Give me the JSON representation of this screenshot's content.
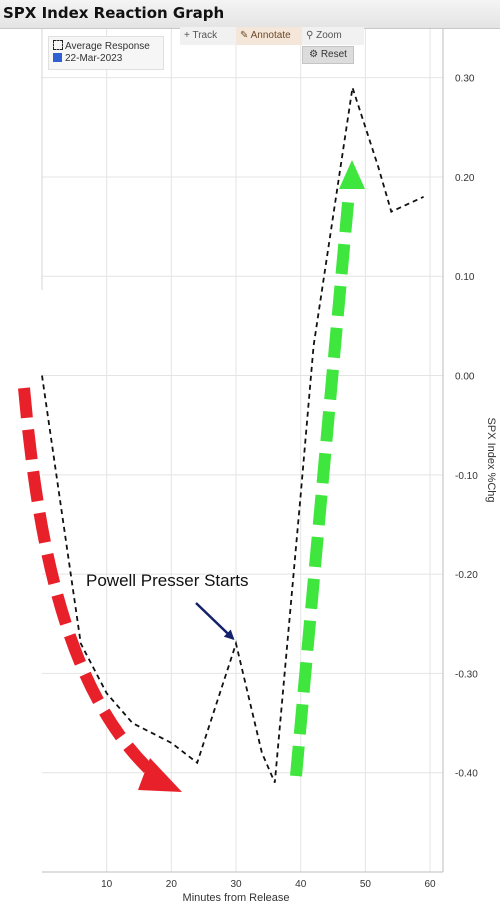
{
  "title": "SPX Index Reaction Graph",
  "legend": {
    "entries": [
      {
        "label": "Average Response",
        "swatch": "dashed-outline"
      },
      {
        "label": "22-Mar-2023",
        "swatch": "blue-square",
        "color": "#2f5fd0"
      }
    ]
  },
  "toolbar": {
    "track_label": "Track",
    "annotate_label": "Annotate",
    "zoom_label": "Zoom",
    "reset_label": "Reset"
  },
  "icons": {
    "track": "plus-icon",
    "annotate": "pencil-icon",
    "zoom": "magnifier-icon",
    "reset": "gear-icon"
  },
  "chart_data": {
    "type": "line",
    "title": "SPX Index Reaction Graph",
    "xlabel": "Minutes from Release",
    "ylabel": "SPX Index %Chg",
    "xlim": [
      0,
      62
    ],
    "ylim": [
      -0.5,
      0.35
    ],
    "xticks": [
      10,
      20,
      30,
      40,
      50,
      60
    ],
    "yticks": [
      0.3,
      0.2,
      0.1,
      0.0,
      -0.1,
      -0.2,
      -0.3,
      -0.4
    ],
    "ytick_labels": [
      "0.30",
      "0.20",
      "0.10",
      "0.00",
      "-0.10",
      "-0.20",
      "-0.30",
      "-0.40"
    ],
    "grid": true,
    "y_axis_position": "right",
    "series": [
      {
        "style": "dashed",
        "color": "#111111",
        "x": [
          0,
          6,
          10,
          14,
          20,
          24,
          30,
          34,
          36,
          40,
          42,
          48,
          52,
          54,
          59
        ],
        "y": [
          0.0,
          -0.27,
          -0.32,
          -0.35,
          -0.37,
          -0.39,
          -0.27,
          -0.38,
          -0.41,
          -0.12,
          0.03,
          0.29,
          0.21,
          0.165,
          0.18
        ]
      }
    ],
    "annotations": [
      {
        "text": "Powell Presser Starts",
        "arrow_to_x": 30,
        "arrow_to_y": -0.27,
        "arrow_color": "#14216b"
      }
    ],
    "overlays": [
      {
        "shape": "dashed-arrow",
        "color": "#e8202a",
        "direction": "down"
      },
      {
        "shape": "dashed-arrow",
        "color": "#3ee63e",
        "direction": "up"
      }
    ]
  }
}
